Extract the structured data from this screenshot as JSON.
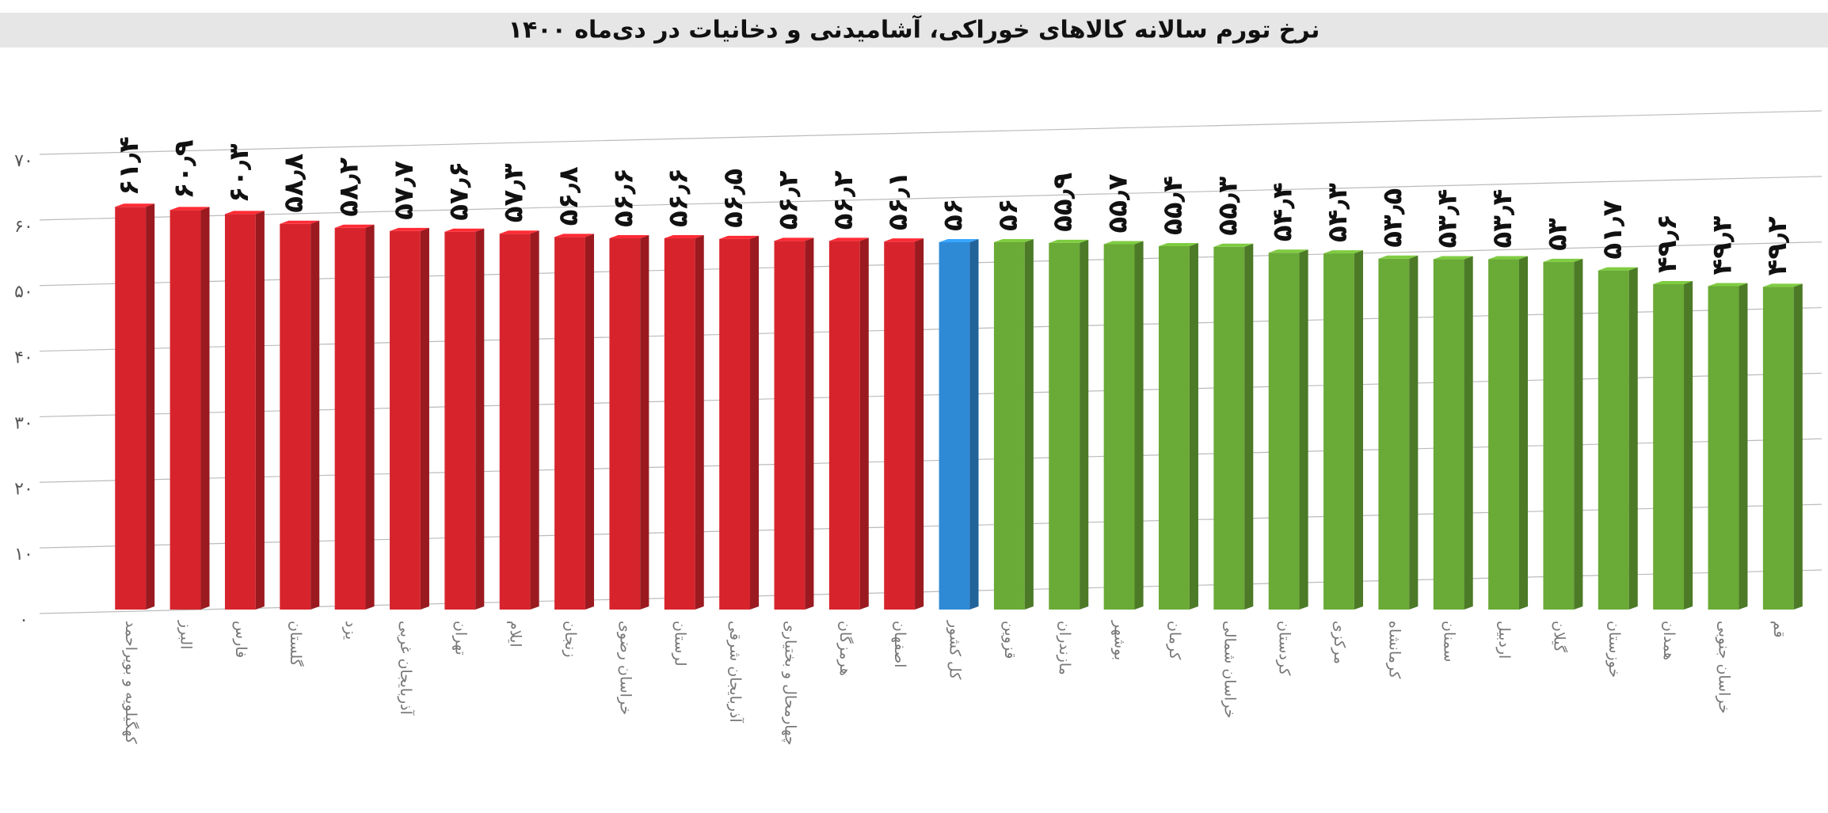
{
  "chart_data": {
    "type": "bar",
    "title": "نرخ تورم سالانه کالاهای خوراکی، آشامیدنی و دخانیات در دی‌ماه ۱۴۰۰",
    "categories": [
      "کهگیلویه و بویراحمد",
      "البرز",
      "فارس",
      "گلستان",
      "یزد",
      "آذربایجان غربی",
      "تهران",
      "ایلام",
      "زنجان",
      "خراسان رضوی",
      "لرستان",
      "آذربایجان شرقی",
      "چهارمحال و بختیاری",
      "هرمزگان",
      "اصفهان",
      "کل کشور",
      "قزوین",
      "مازندران",
      "بوشهر",
      "کرمان",
      "خراسان شمالی",
      "کردستان",
      "مرکزی",
      "کرمانشاه",
      "سمنان",
      "اردبیل",
      "گیلان",
      "خوزستان",
      "همدان",
      "خراسان جنوبی",
      "قم"
    ],
    "values": [
      61.4,
      60.9,
      60.3,
      58.8,
      58.2,
      57.7,
      57.6,
      57.3,
      56.8,
      56.6,
      56.6,
      56.5,
      56.2,
      56.2,
      56.1,
      56,
      56,
      55.9,
      55.7,
      55.4,
      55.3,
      54.4,
      54.3,
      53.5,
      53.4,
      53.4,
      53,
      51.7,
      49.6,
      49.3,
      49.2
    ],
    "value_labels": [
      "۶۱٫۴",
      "۶۰٫۹",
      "۶۰٫۳",
      "۵۸٫۸",
      "۵۸٫۲",
      "۵۷٫۷",
      "۵۷٫۶",
      "۵۷٫۳",
      "۵۶٫۸",
      "۵۶٫۶",
      "۵۶٫۶",
      "۵۶٫۵",
      "۵۶٫۲",
      "۵۶٫۲",
      "۵۶٫۱",
      "۵۶",
      "۵۶",
      "۵۵٫۹",
      "۵۵٫۷",
      "۵۵٫۴",
      "۵۵٫۳",
      "۵۴٫۴",
      "۵۴٫۳",
      "۵۳٫۵",
      "۵۳٫۴",
      "۵۳٫۴",
      "۵۳",
      "۵۱٫۷",
      "۴۹٫۶",
      "۴۹٫۳",
      "۴۹٫۲"
    ],
    "colors": [
      "#d7242c",
      "#d7242c",
      "#d7242c",
      "#d7242c",
      "#d7242c",
      "#d7242c",
      "#d7242c",
      "#d7242c",
      "#d7242c",
      "#d7242c",
      "#d7242c",
      "#d7242c",
      "#d7242c",
      "#d7242c",
      "#d7242c",
      "#2f8ad6",
      "#6aaa36",
      "#6aaa36",
      "#6aaa36",
      "#6aaa36",
      "#6aaa36",
      "#6aaa36",
      "#6aaa36",
      "#6aaa36",
      "#6aaa36",
      "#6aaa36",
      "#6aaa36",
      "#6aaa36",
      "#6aaa36",
      "#6aaa36",
      "#6aaa36"
    ],
    "ylim": [
      0,
      70
    ],
    "yticks": [
      {
        "value": 0,
        "label": "۰"
      },
      {
        "value": 10,
        "label": "۱۰"
      },
      {
        "value": 20,
        "label": "۲۰"
      },
      {
        "value": 30,
        "label": "۳۰"
      },
      {
        "value": 40,
        "label": "۴۰"
      },
      {
        "value": 50,
        "label": "۵۰"
      },
      {
        "value": 60,
        "label": "۶۰"
      },
      {
        "value": 70,
        "label": "۷۰"
      }
    ],
    "grid": true
  }
}
